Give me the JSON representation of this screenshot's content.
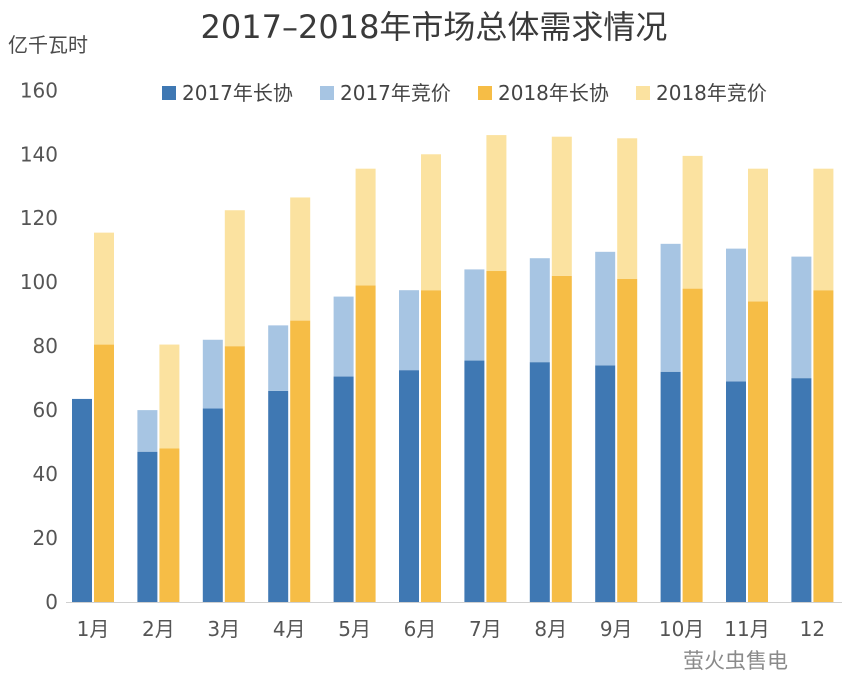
{
  "chart_data": {
    "type": "bar",
    "title": "2017–2018年市场总体需求情况",
    "ylabel": "亿千瓦时",
    "xlabel": "",
    "ylim": [
      0,
      160
    ],
    "yticks": [
      0,
      20,
      40,
      60,
      80,
      100,
      120,
      140,
      160
    ],
    "categories": [
      "1月",
      "2月",
      "3月",
      "4月",
      "5月",
      "6月",
      "7月",
      "8月",
      "9月",
      "10月",
      "11月",
      "12"
    ],
    "stacked": true,
    "grid": false,
    "legend_position": "top",
    "series": [
      {
        "name": "2017年长协",
        "stack": "2017",
        "color": "#3f78b3",
        "values": [
          63.5,
          47,
          60.5,
          66,
          70.5,
          72.5,
          75.5,
          75,
          74,
          72,
          69,
          70
        ]
      },
      {
        "name": "2017年竞价",
        "stack": "2017",
        "color": "#a7c5e3",
        "values": [
          0,
          13,
          21.5,
          20.5,
          25,
          25,
          28.5,
          32.5,
          35.5,
          40,
          41.5,
          38
        ]
      },
      {
        "name": "2018年长协",
        "stack": "2018",
        "color": "#f6bd46",
        "values": [
          80.5,
          48,
          80,
          88,
          99,
          97.5,
          103.5,
          102,
          101,
          98,
          94,
          97.5
        ]
      },
      {
        "name": "2018年竞价",
        "stack": "2018",
        "color": "#fbe2a0",
        "values": [
          35,
          32.5,
          42.5,
          38.5,
          36.5,
          42.5,
          42.5,
          43.5,
          44,
          41.5,
          41.5,
          38
        ]
      }
    ]
  },
  "watermark": "萤火虫售电"
}
